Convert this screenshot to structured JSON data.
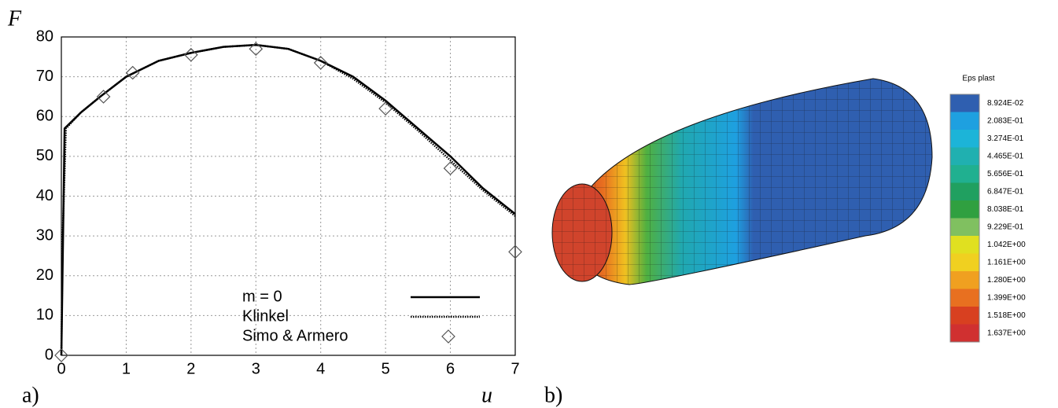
{
  "chart_data": [
    {
      "type": "line",
      "panel_label": "a)",
      "ylabel": "F",
      "xlabel": "u",
      "xlim": [
        0,
        7
      ],
      "xticks": [
        0,
        1,
        2,
        3,
        4,
        5,
        6,
        7
      ],
      "ylim": [
        0,
        80
      ],
      "yticks": [
        0,
        10,
        20,
        30,
        40,
        50,
        60,
        70,
        80
      ],
      "grid": true,
      "series": [
        {
          "name": "m = 0",
          "color": "#000000",
          "style": "solid",
          "x": [
            0,
            0.05,
            0.3,
            0.6,
            1,
            1.5,
            2,
            2.5,
            3,
            3.5,
            4,
            4.5,
            5,
            5.5,
            6,
            6.5,
            7
          ],
          "values": [
            0,
            57,
            61,
            65,
            70,
            74,
            76,
            77.5,
            78,
            77,
            74,
            70,
            64,
            57,
            50,
            42,
            35.5
          ]
        },
        {
          "name": "Klinkel",
          "color": "#000000",
          "style": "dotted",
          "x": [
            0,
            0.02,
            0.07,
            0.3,
            0.6,
            1,
            1.5,
            2,
            2.5,
            3,
            3.5,
            4,
            4.5,
            5,
            5.5,
            6,
            6.5,
            7
          ],
          "values": [
            0,
            30,
            57,
            61,
            65,
            70,
            74,
            76,
            77.5,
            78,
            77,
            74,
            69.5,
            63.5,
            56.5,
            49,
            41.5,
            35
          ]
        },
        {
          "name": "Simo & Armero",
          "color": "#555555",
          "style": "marker",
          "x": [
            0,
            0.65,
            1.1,
            2,
            3,
            4,
            5,
            6,
            7
          ],
          "values": [
            0,
            65,
            71,
            75.5,
            77,
            73.5,
            62,
            47,
            26
          ]
        }
      ]
    },
    {
      "type": "colorbar",
      "panel_label": "b)",
      "title": "Eps plast",
      "ticks": [
        {
          "value": 0.08924,
          "label": "8.924E-02"
        },
        {
          "value": 0.2083,
          "label": "2.083E-01"
        },
        {
          "value": 0.3274,
          "label": "3.274E-01"
        },
        {
          "value": 0.4465,
          "label": "4.465E-01"
        },
        {
          "value": 0.5656,
          "label": "5.656E-01"
        },
        {
          "value": 0.6847,
          "label": "6.847E-01"
        },
        {
          "value": 0.8038,
          "label": "8.038E-01"
        },
        {
          "value": 0.9229,
          "label": "9.229E-01"
        },
        {
          "value": 1.042,
          "label": "1.042E+00"
        },
        {
          "value": 1.161,
          "label": "1.161E+00"
        },
        {
          "value": 1.28,
          "label": "1.280E+00"
        },
        {
          "value": 1.399,
          "label": "1.399E+00"
        },
        {
          "value": 1.518,
          "label": "1.518E+00"
        },
        {
          "value": 1.637,
          "label": "1.637E+00"
        }
      ],
      "colors": [
        "#2f5fb0",
        "#1ea0e0",
        "#1cb4d8",
        "#20b0b0",
        "#20b090",
        "#20a060",
        "#30a040",
        "#80c060",
        "#e0e020",
        "#f0d020",
        "#f0a020",
        "#e87020",
        "#d84020",
        "#d03030"
      ]
    }
  ]
}
